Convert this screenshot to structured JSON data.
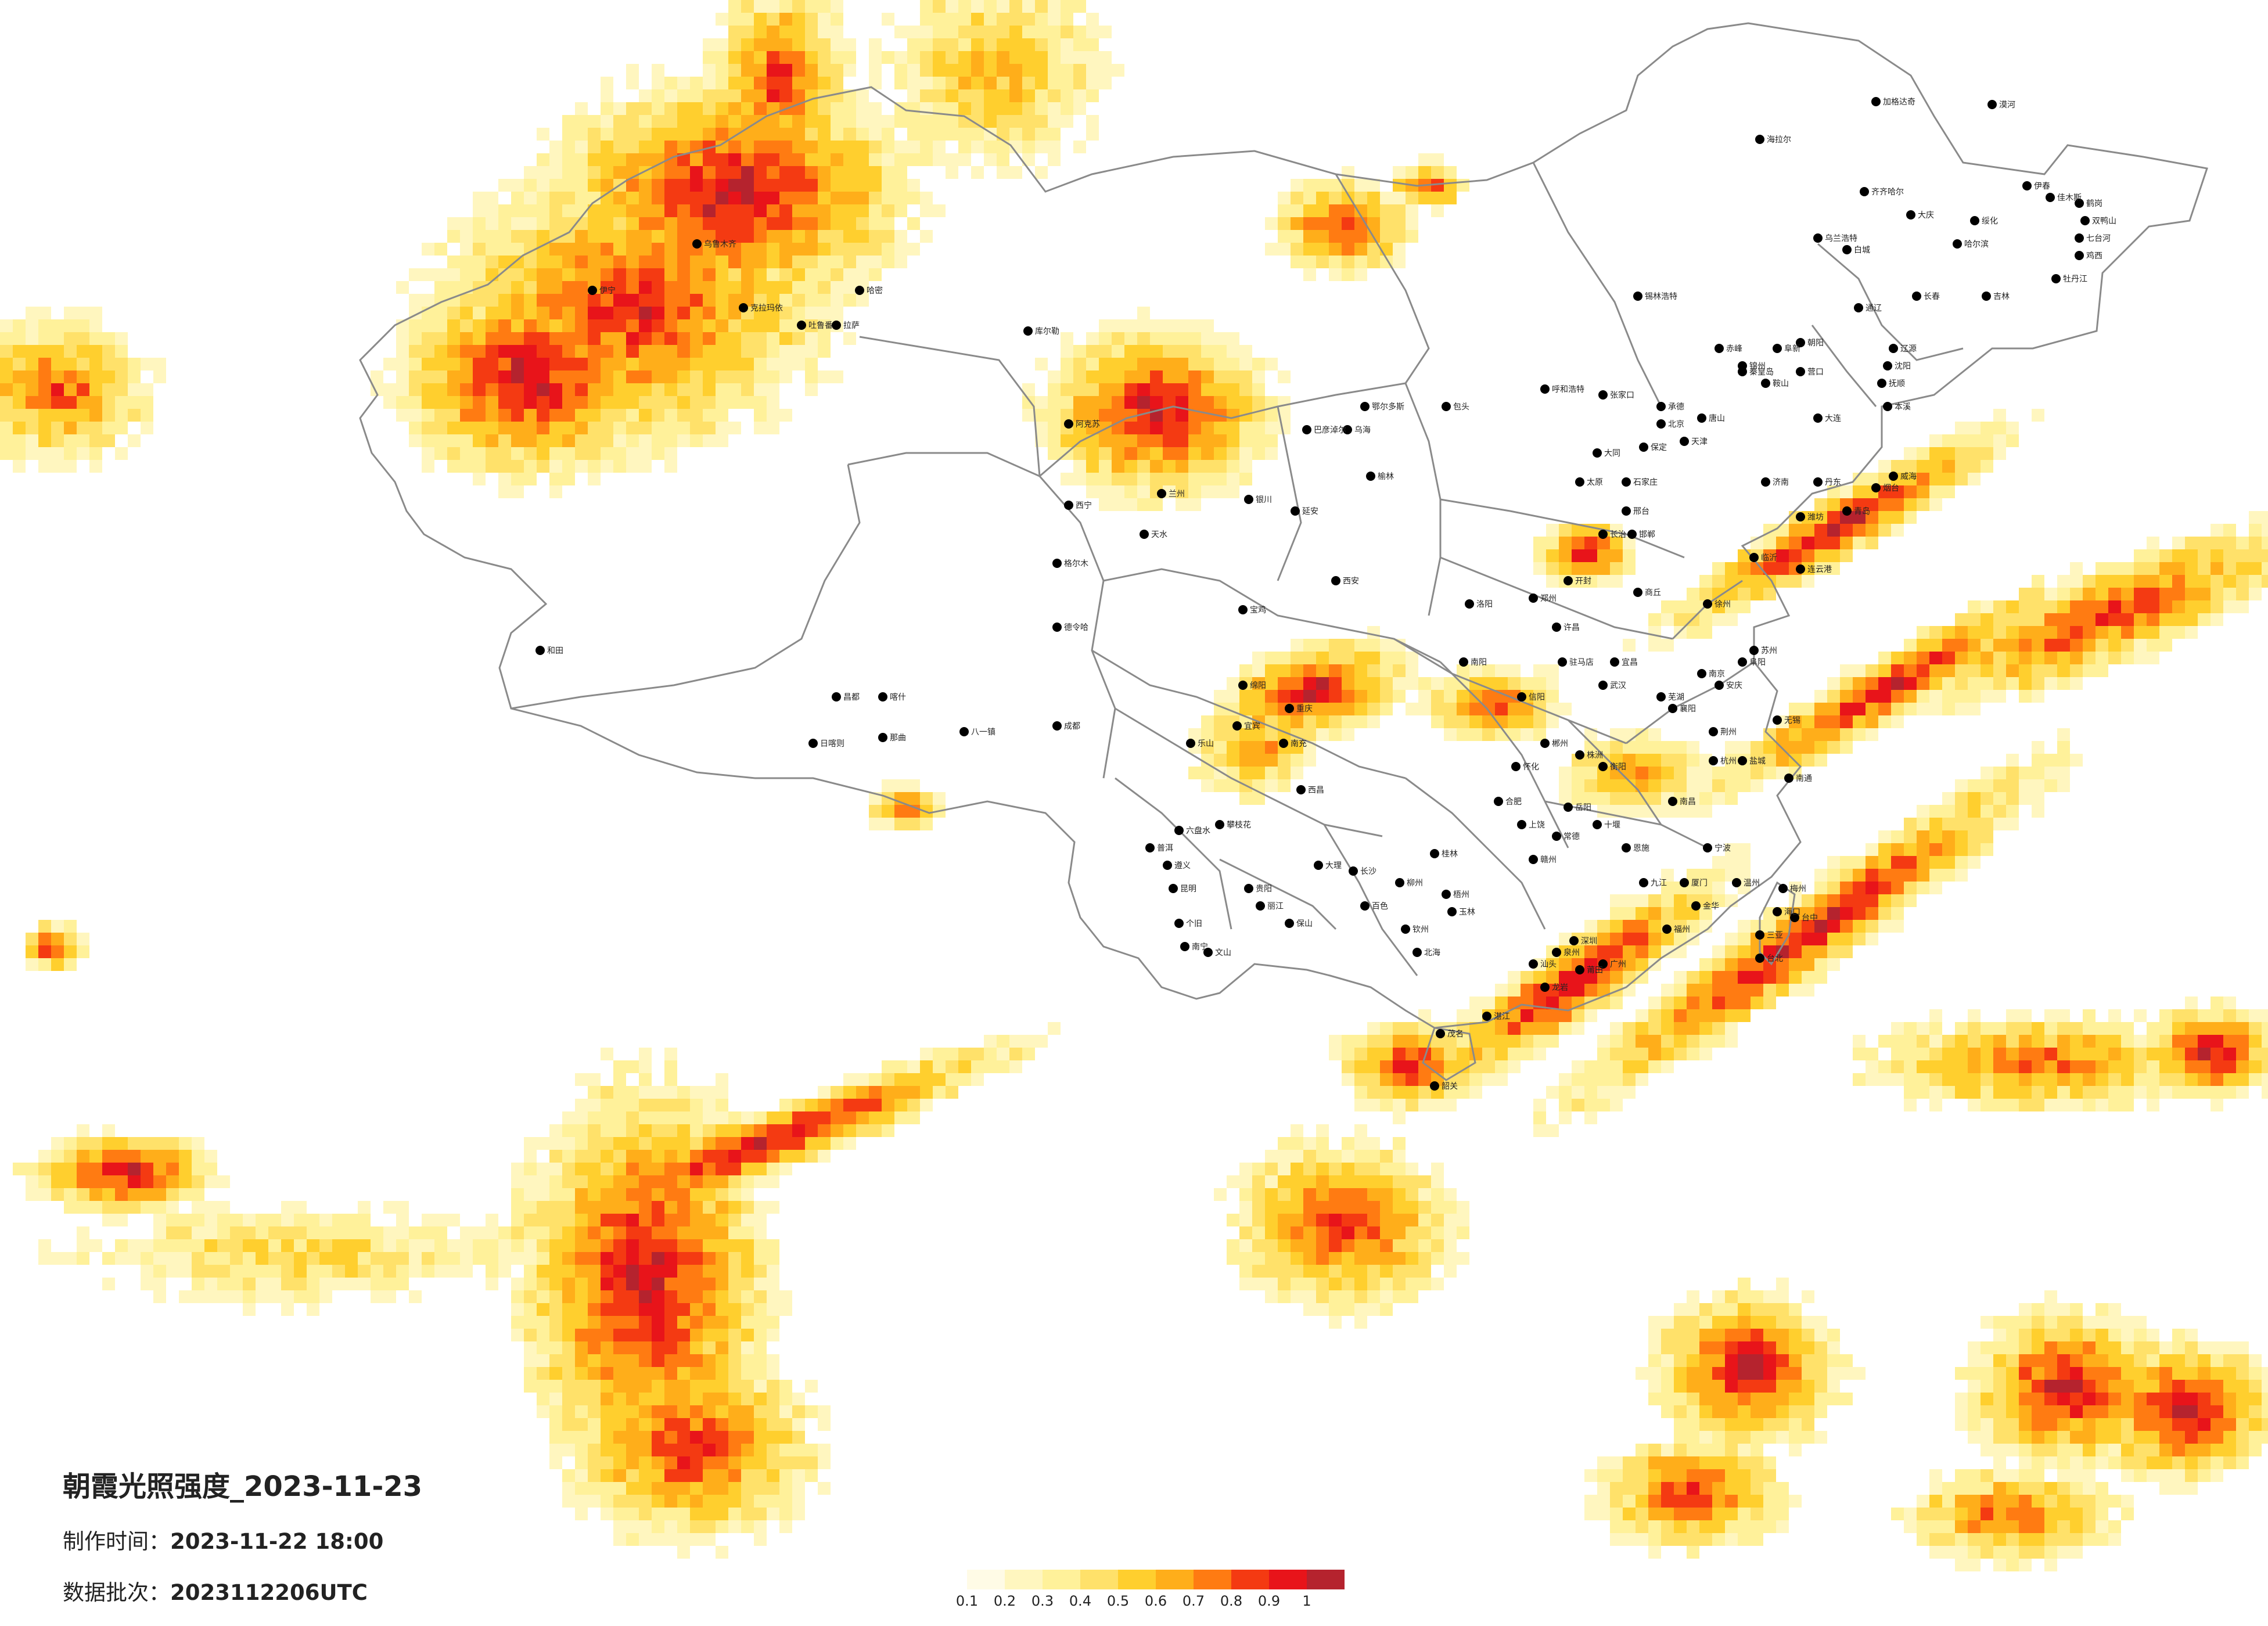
{
  "title": "朝霞光照强度_2023-11-23",
  "info": {
    "made_label": "制作时间：",
    "made_value": "2023-11-22 18:00",
    "batch_label": "数据批次：",
    "batch_value": "2023112206UTC"
  },
  "legend": {
    "colors": [
      "#fffbe6",
      "#fff6bf",
      "#fff19a",
      "#ffe16a",
      "#ffcf2e",
      "#ffae1a",
      "#ff7b12",
      "#f43a12",
      "#e8141a",
      "#b5232e"
    ],
    "labels": [
      "0.1",
      "0.2",
      "0.3",
      "0.4",
      "0.5",
      "0.6",
      "0.7",
      "0.8",
      "0.9",
      "1"
    ]
  },
  "cities": [
    "漠河",
    "海拉尔",
    "加格达奇",
    "齐齐哈尔",
    "大庆",
    "哈尔滨",
    "佳木斯",
    "鹤岗",
    "双鸭山",
    "七台河",
    "鸡西",
    "牡丹江",
    "绥化",
    "伊春",
    "乌兰浩特",
    "白城",
    "通辽",
    "长春",
    "吉林",
    "辽源",
    "沈阳",
    "抚顺",
    "本溪",
    "丹东",
    "大连",
    "营口",
    "鞍山",
    "锦州",
    "阜新",
    "朝阳",
    "赤峰",
    "锡林浩特",
    "呼和浩特",
    "包头",
    "乌海",
    "巴彦淖尔",
    "鄂尔多斯",
    "张家口",
    "北京",
    "天津",
    "唐山",
    "秦皇岛",
    "承德",
    "石家庄",
    "保定",
    "邢台",
    "邯郸",
    "太原",
    "大同",
    "长治",
    "济南",
    "青岛",
    "烟台",
    "威海",
    "潍坊",
    "临沂",
    "连云港",
    "徐州",
    "郑州",
    "洛阳",
    "开封",
    "商丘",
    "许昌",
    "南阳",
    "信阳",
    "驻马店",
    "西安",
    "宝鸡",
    "延安",
    "榆林",
    "银川",
    "兰州",
    "天水",
    "西宁",
    "格尔木",
    "德令哈",
    "乌鲁木齐",
    "克拉玛依",
    "伊宁",
    "吐鲁番",
    "哈密",
    "阿克苏",
    "库尔勒",
    "喀什",
    "和田",
    "拉萨",
    "日喀则",
    "那曲",
    "昌都",
    "八一镇",
    "成都",
    "重庆",
    "绵阳",
    "南充",
    "宜宾",
    "乐山",
    "西昌",
    "攀枝花",
    "贵阳",
    "遵义",
    "六盘水",
    "昆明",
    "大理",
    "丽江",
    "保山",
    "普洱",
    "个旧",
    "文山",
    "南宁",
    "柳州",
    "桂林",
    "梧州",
    "北海",
    "钦州",
    "玉林",
    "百色",
    "长沙",
    "株洲",
    "衡阳",
    "岳阳",
    "常德",
    "怀化",
    "郴州",
    "武汉",
    "宜昌",
    "襄阳",
    "荆州",
    "十堰",
    "恩施",
    "南昌",
    "九江",
    "赣州",
    "上饶",
    "合肥",
    "芜湖",
    "安庆",
    "阜阳",
    "南京",
    "苏州",
    "无锡",
    "南通",
    "盐城",
    "杭州",
    "宁波",
    "温州",
    "金华",
    "福州",
    "厦门",
    "泉州",
    "莆田",
    "龙岩",
    "广州",
    "深圳",
    "汕头",
    "湛江",
    "茂名",
    "韶关",
    "梅州",
    "海口",
    "三亚",
    "台北",
    "台中",
    "台南",
    "高雄",
    "花莲"
  ]
}
